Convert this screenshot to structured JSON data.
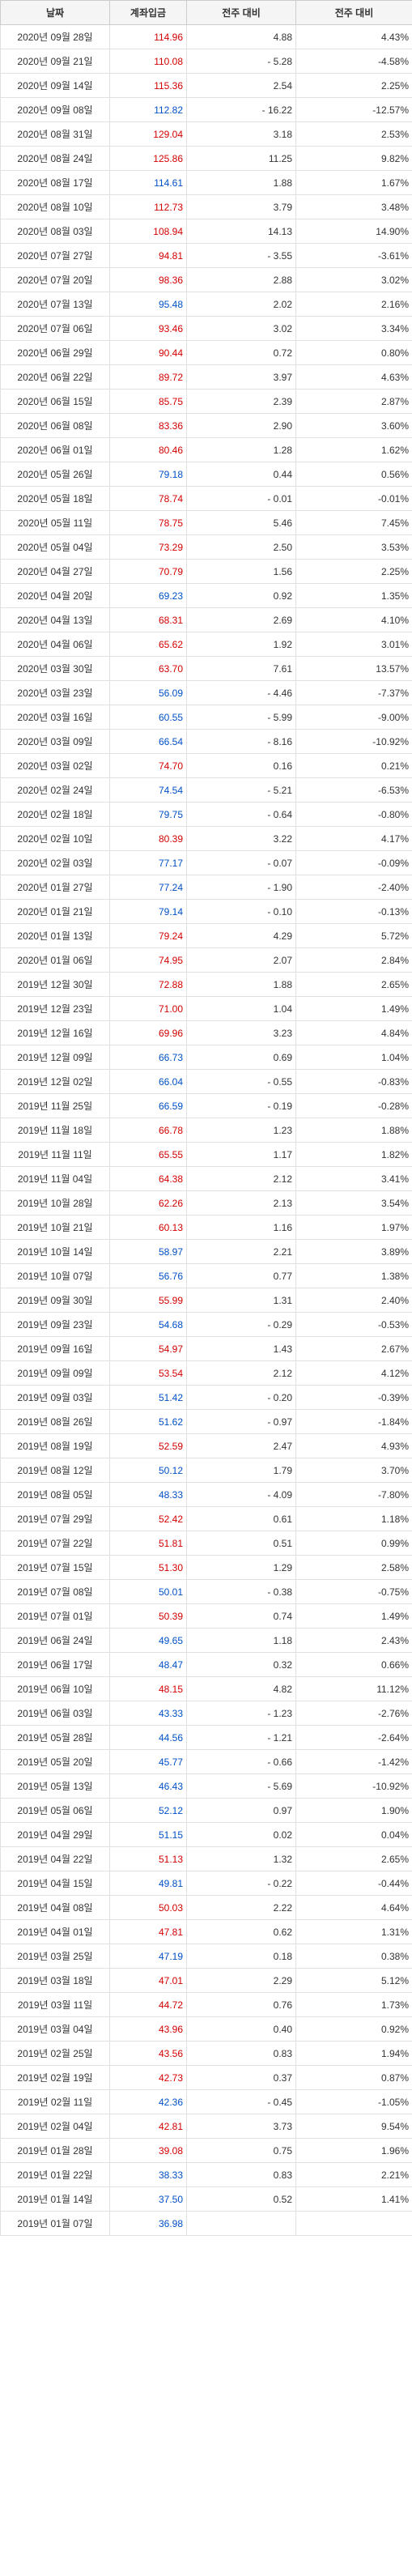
{
  "headers": [
    "날짜",
    "계좌입금",
    "전주 대비",
    "전주 대비"
  ],
  "rows": [
    {
      "date": "2020년 09월 28일",
      "v": "114.96",
      "vc": "red",
      "d": "4.88",
      "p": "4.43%"
    },
    {
      "date": "2020년 09월 21일",
      "v": "110.08",
      "vc": "red",
      "d": "-    5.28",
      "p": "-4.58%"
    },
    {
      "date": "2020년 09월 14일",
      "v": "115.36",
      "vc": "red",
      "d": "2.54",
      "p": "2.25%"
    },
    {
      "date": "2020년 09월 08일",
      "v": "112.82",
      "vc": "blue",
      "d": "-  16.22",
      "p": "-12.57%"
    },
    {
      "date": "2020년 08월 31일",
      "v": "129.04",
      "vc": "red",
      "d": "3.18",
      "p": "2.53%"
    },
    {
      "date": "2020년 08월 24일",
      "v": "125.86",
      "vc": "red",
      "d": "11.25",
      "p": "9.82%"
    },
    {
      "date": "2020년 08월 17일",
      "v": "114.61",
      "vc": "blue",
      "d": "1.88",
      "p": "1.67%"
    },
    {
      "date": "2020년 08월 10일",
      "v": "112.73",
      "vc": "red",
      "d": "3.79",
      "p": "3.48%"
    },
    {
      "date": "2020년 08월 03일",
      "v": "108.94",
      "vc": "red",
      "d": "14.13",
      "p": "14.90%"
    },
    {
      "date": "2020년 07월 27일",
      "v": "94.81",
      "vc": "red",
      "d": "-    3.55",
      "p": "-3.61%"
    },
    {
      "date": "2020년 07월 20일",
      "v": "98.36",
      "vc": "red",
      "d": "2.88",
      "p": "3.02%"
    },
    {
      "date": "2020년 07월 13일",
      "v": "95.48",
      "vc": "blue",
      "d": "2.02",
      "p": "2.16%"
    },
    {
      "date": "2020년 07월 06일",
      "v": "93.46",
      "vc": "red",
      "d": "3.02",
      "p": "3.34%"
    },
    {
      "date": "2020년 06월 29일",
      "v": "90.44",
      "vc": "red",
      "d": "0.72",
      "p": "0.80%"
    },
    {
      "date": "2020년 06월 22일",
      "v": "89.72",
      "vc": "red",
      "d": "3.97",
      "p": "4.63%"
    },
    {
      "date": "2020년 06월 15일",
      "v": "85.75",
      "vc": "red",
      "d": "2.39",
      "p": "2.87%"
    },
    {
      "date": "2020년 06월 08일",
      "v": "83.36",
      "vc": "red",
      "d": "2.90",
      "p": "3.60%"
    },
    {
      "date": "2020년 06월 01일",
      "v": "80.46",
      "vc": "red",
      "d": "1.28",
      "p": "1.62%"
    },
    {
      "date": "2020년 05월 26일",
      "v": "79.18",
      "vc": "blue",
      "d": "0.44",
      "p": "0.56%"
    },
    {
      "date": "2020년 05월 18일",
      "v": "78.74",
      "vc": "red",
      "d": "-    0.01",
      "p": "-0.01%"
    },
    {
      "date": "2020년 05월 11일",
      "v": "78.75",
      "vc": "red",
      "d": "5.46",
      "p": "7.45%"
    },
    {
      "date": "2020년 05월 04일",
      "v": "73.29",
      "vc": "red",
      "d": "2.50",
      "p": "3.53%"
    },
    {
      "date": "2020년 04월 27일",
      "v": "70.79",
      "vc": "red",
      "d": "1.56",
      "p": "2.25%"
    },
    {
      "date": "2020년 04월 20일",
      "v": "69.23",
      "vc": "blue",
      "d": "0.92",
      "p": "1.35%"
    },
    {
      "date": "2020년 04월 13일",
      "v": "68.31",
      "vc": "red",
      "d": "2.69",
      "p": "4.10%"
    },
    {
      "date": "2020년 04월 06일",
      "v": "65.62",
      "vc": "red",
      "d": "1.92",
      "p": "3.01%"
    },
    {
      "date": "2020년 03월 30일",
      "v": "63.70",
      "vc": "red",
      "d": "7.61",
      "p": "13.57%"
    },
    {
      "date": "2020년 03월 23일",
      "v": "56.09",
      "vc": "blue",
      "d": "-    4.46",
      "p": "-7.37%"
    },
    {
      "date": "2020년 03월 16일",
      "v": "60.55",
      "vc": "blue",
      "d": "-    5.99",
      "p": "-9.00%"
    },
    {
      "date": "2020년 03월 09일",
      "v": "66.54",
      "vc": "blue",
      "d": "-    8.16",
      "p": "-10.92%"
    },
    {
      "date": "2020년 03월 02일",
      "v": "74.70",
      "vc": "red",
      "d": "0.16",
      "p": "0.21%"
    },
    {
      "date": "2020년 02월 24일",
      "v": "74.54",
      "vc": "blue",
      "d": "-    5.21",
      "p": "-6.53%"
    },
    {
      "date": "2020년 02월 18일",
      "v": "79.75",
      "vc": "blue",
      "d": "-    0.64",
      "p": "-0.80%"
    },
    {
      "date": "2020년 02월 10일",
      "v": "80.39",
      "vc": "red",
      "d": "3.22",
      "p": "4.17%"
    },
    {
      "date": "2020년 02월 03일",
      "v": "77.17",
      "vc": "blue",
      "d": "-    0.07",
      "p": "-0.09%"
    },
    {
      "date": "2020년 01월 27일",
      "v": "77.24",
      "vc": "blue",
      "d": "-    1.90",
      "p": "-2.40%"
    },
    {
      "date": "2020년 01월 21일",
      "v": "79.14",
      "vc": "blue",
      "d": "-    0.10",
      "p": "-0.13%"
    },
    {
      "date": "2020년 01월 13일",
      "v": "79.24",
      "vc": "red",
      "d": "4.29",
      "p": "5.72%"
    },
    {
      "date": "2020년 01월 06일",
      "v": "74.95",
      "vc": "red",
      "d": "2.07",
      "p": "2.84%"
    },
    {
      "date": "2019년 12월 30일",
      "v": "72.88",
      "vc": "red",
      "d": "1.88",
      "p": "2.65%"
    },
    {
      "date": "2019년 12월 23일",
      "v": "71.00",
      "vc": "red",
      "d": "1.04",
      "p": "1.49%"
    },
    {
      "date": "2019년 12월 16일",
      "v": "69.96",
      "vc": "red",
      "d": "3.23",
      "p": "4.84%"
    },
    {
      "date": "2019년 12월 09일",
      "v": "66.73",
      "vc": "blue",
      "d": "0.69",
      "p": "1.04%"
    },
    {
      "date": "2019년 12월 02일",
      "v": "66.04",
      "vc": "blue",
      "d": "-    0.55",
      "p": "-0.83%"
    },
    {
      "date": "2019년 11월 25일",
      "v": "66.59",
      "vc": "blue",
      "d": "-    0.19",
      "p": "-0.28%"
    },
    {
      "date": "2019년 11월 18일",
      "v": "66.78",
      "vc": "red",
      "d": "1.23",
      "p": "1.88%"
    },
    {
      "date": "2019년 11월 11일",
      "v": "65.55",
      "vc": "red",
      "d": "1.17",
      "p": "1.82%"
    },
    {
      "date": "2019년 11월 04일",
      "v": "64.38",
      "vc": "red",
      "d": "2.12",
      "p": "3.41%"
    },
    {
      "date": "2019년 10월 28일",
      "v": "62.26",
      "vc": "red",
      "d": "2.13",
      "p": "3.54%"
    },
    {
      "date": "2019년 10월 21일",
      "v": "60.13",
      "vc": "red",
      "d": "1.16",
      "p": "1.97%"
    },
    {
      "date": "2019년 10월 14일",
      "v": "58.97",
      "vc": "blue",
      "d": "2.21",
      "p": "3.89%"
    },
    {
      "date": "2019년 10월 07일",
      "v": "56.76",
      "vc": "blue",
      "d": "0.77",
      "p": "1.38%"
    },
    {
      "date": "2019년 09월 30일",
      "v": "55.99",
      "vc": "red",
      "d": "1.31",
      "p": "2.40%"
    },
    {
      "date": "2019년 09월 23일",
      "v": "54.68",
      "vc": "blue",
      "d": "-    0.29",
      "p": "-0.53%"
    },
    {
      "date": "2019년 09월 16일",
      "v": "54.97",
      "vc": "red",
      "d": "1.43",
      "p": "2.67%"
    },
    {
      "date": "2019년 09월 09일",
      "v": "53.54",
      "vc": "red",
      "d": "2.12",
      "p": "4.12%"
    },
    {
      "date": "2019년 09월 03일",
      "v": "51.42",
      "vc": "blue",
      "d": "-    0.20",
      "p": "-0.39%"
    },
    {
      "date": "2019년 08월 26일",
      "v": "51.62",
      "vc": "blue",
      "d": "-    0.97",
      "p": "-1.84%"
    },
    {
      "date": "2019년 08월 19일",
      "v": "52.59",
      "vc": "red",
      "d": "2.47",
      "p": "4.93%"
    },
    {
      "date": "2019년 08월 12일",
      "v": "50.12",
      "vc": "blue",
      "d": "1.79",
      "p": "3.70%"
    },
    {
      "date": "2019년 08월 05일",
      "v": "48.33",
      "vc": "blue",
      "d": "-    4.09",
      "p": "-7.80%"
    },
    {
      "date": "2019년 07월 29일",
      "v": "52.42",
      "vc": "red",
      "d": "0.61",
      "p": "1.18%"
    },
    {
      "date": "2019년 07월 22일",
      "v": "51.81",
      "vc": "red",
      "d": "0.51",
      "p": "0.99%"
    },
    {
      "date": "2019년 07월 15일",
      "v": "51.30",
      "vc": "red",
      "d": "1.29",
      "p": "2.58%"
    },
    {
      "date": "2019년 07월 08일",
      "v": "50.01",
      "vc": "blue",
      "d": "-    0.38",
      "p": "-0.75%"
    },
    {
      "date": "2019년 07월 01일",
      "v": "50.39",
      "vc": "red",
      "d": "0.74",
      "p": "1.49%"
    },
    {
      "date": "2019년 06월 24일",
      "v": "49.65",
      "vc": "blue",
      "d": "1.18",
      "p": "2.43%"
    },
    {
      "date": "2019년 06월 17일",
      "v": "48.47",
      "vc": "blue",
      "d": "0.32",
      "p": "0.66%"
    },
    {
      "date": "2019년 06월 10일",
      "v": "48.15",
      "vc": "red",
      "d": "4.82",
      "p": "11.12%"
    },
    {
      "date": "2019년 06월 03일",
      "v": "43.33",
      "vc": "blue",
      "d": "-    1.23",
      "p": "-2.76%"
    },
    {
      "date": "2019년 05월 28일",
      "v": "44.56",
      "vc": "blue",
      "d": "-    1.21",
      "p": "-2.64%"
    },
    {
      "date": "2019년 05월 20일",
      "v": "45.77",
      "vc": "blue",
      "d": "-    0.66",
      "p": "-1.42%"
    },
    {
      "date": "2019년 05월 13일",
      "v": "46.43",
      "vc": "blue",
      "d": "-    5.69",
      "p": "-10.92%"
    },
    {
      "date": "2019년 05월 06일",
      "v": "52.12",
      "vc": "blue",
      "d": "0.97",
      "p": "1.90%"
    },
    {
      "date": "2019년 04월 29일",
      "v": "51.15",
      "vc": "blue",
      "d": "0.02",
      "p": "0.04%"
    },
    {
      "date": "2019년 04월 22일",
      "v": "51.13",
      "vc": "red",
      "d": "1.32",
      "p": "2.65%"
    },
    {
      "date": "2019년 04월 15일",
      "v": "49.81",
      "vc": "blue",
      "d": "-    0.22",
      "p": "-0.44%"
    },
    {
      "date": "2019년 04월 08일",
      "v": "50.03",
      "vc": "red",
      "d": "2.22",
      "p": "4.64%"
    },
    {
      "date": "2019년 04월 01일",
      "v": "47.81",
      "vc": "red",
      "d": "0.62",
      "p": "1.31%"
    },
    {
      "date": "2019년 03월 25일",
      "v": "47.19",
      "vc": "blue",
      "d": "0.18",
      "p": "0.38%"
    },
    {
      "date": "2019년 03월 18일",
      "v": "47.01",
      "vc": "red",
      "d": "2.29",
      "p": "5.12%"
    },
    {
      "date": "2019년 03월 11일",
      "v": "44.72",
      "vc": "red",
      "d": "0.76",
      "p": "1.73%"
    },
    {
      "date": "2019년 03월 04일",
      "v": "43.96",
      "vc": "red",
      "d": "0.40",
      "p": "0.92%"
    },
    {
      "date": "2019년 02월 25일",
      "v": "43.56",
      "vc": "red",
      "d": "0.83",
      "p": "1.94%"
    },
    {
      "date": "2019년 02월 19일",
      "v": "42.73",
      "vc": "red",
      "d": "0.37",
      "p": "0.87%"
    },
    {
      "date": "2019년 02월 11일",
      "v": "42.36",
      "vc": "blue",
      "d": "-    0.45",
      "p": "-1.05%"
    },
    {
      "date": "2019년 02월 04일",
      "v": "42.81",
      "vc": "red",
      "d": "3.73",
      "p": "9.54%"
    },
    {
      "date": "2019년 01월 28일",
      "v": "39.08",
      "vc": "red",
      "d": "0.75",
      "p": "1.96%"
    },
    {
      "date": "2019년 01월 22일",
      "v": "38.33",
      "vc": "blue",
      "d": "0.83",
      "p": "2.21%"
    },
    {
      "date": "2019년 01월 14일",
      "v": "37.50",
      "vc": "blue",
      "d": "0.52",
      "p": "1.41%"
    },
    {
      "date": "2019년 01월 07일",
      "v": "36.98",
      "vc": "blue",
      "d": "",
      "p": ""
    }
  ]
}
